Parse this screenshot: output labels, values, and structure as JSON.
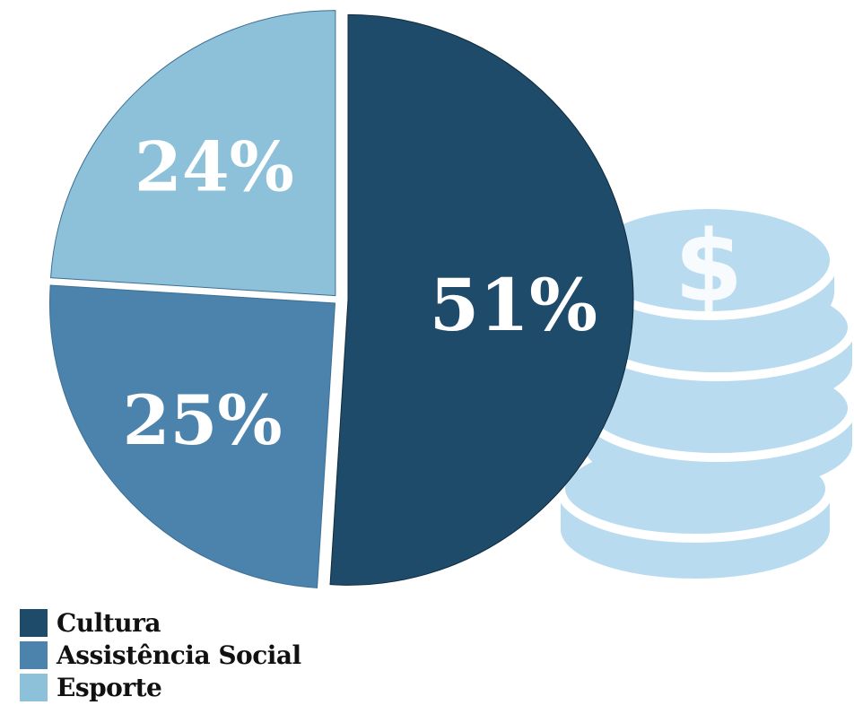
{
  "chart_data": {
    "type": "pie",
    "categories": [
      "Cultura",
      "Assistência Social",
      "Esporte"
    ],
    "values": [
      51,
      25,
      24
    ],
    "labels": [
      "51%",
      "25%",
      "24%"
    ],
    "colors": [
      "#1e4b6a",
      "#4b83ad",
      "#8dc1da"
    ],
    "legend_position": "bottom-left"
  },
  "decoration": {
    "coin_color": "#b8dbf0",
    "icon": "coins-stack-dollar-icon"
  }
}
